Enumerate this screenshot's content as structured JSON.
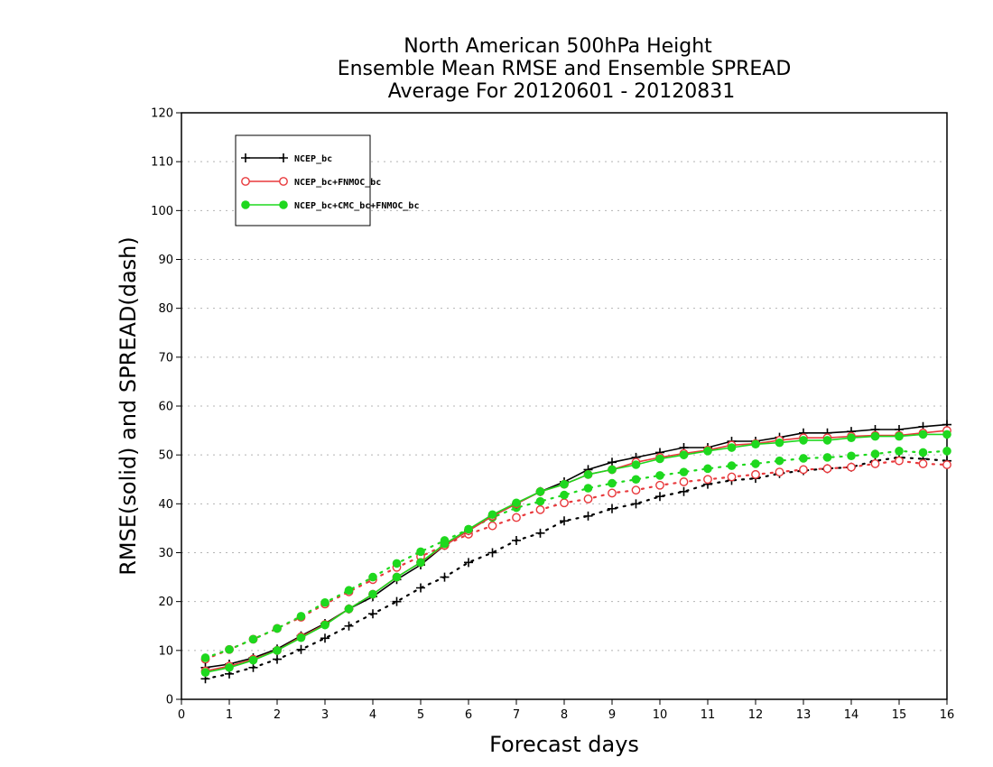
{
  "chart_data": {
    "type": "line",
    "title": [
      "North American 500hPa Height",
      "Ensemble Mean RMSE and Ensemble SPREAD",
      "Average For 20120601 - 20120831"
    ],
    "xlabel": "Forecast days",
    "ylabel": "RMSE(solid) and SPREAD(dash)",
    "xlim": [
      0,
      16
    ],
    "ylim": [
      0,
      120
    ],
    "xticks": [
      0,
      1,
      2,
      3,
      4,
      5,
      6,
      7,
      8,
      9,
      10,
      11,
      12,
      13,
      14,
      15,
      16
    ],
    "yticks": [
      0,
      10,
      20,
      30,
      40,
      50,
      60,
      70,
      80,
      90,
      100,
      110,
      120
    ],
    "grid": "horizontal dotted",
    "legend_position": "top-left",
    "x": [
      0.5,
      1,
      1.5,
      2,
      2.5,
      3,
      3.5,
      4,
      4.5,
      5,
      5.5,
      6,
      6.5,
      7,
      7.5,
      8,
      8.5,
      9,
      9.5,
      10,
      10.5,
      11,
      11.5,
      12,
      12.5,
      13,
      13.5,
      14,
      14.5,
      15,
      15.5,
      16
    ],
    "series": [
      {
        "name": "NCEP_bc",
        "color": "#000000",
        "marker": "plus",
        "rmse": [
          6.5,
          7.2,
          8.5,
          10.3,
          13,
          15.5,
          18.5,
          21,
          24.5,
          27.5,
          31.5,
          34.5,
          37.5,
          40,
          42.5,
          44.5,
          47,
          48.5,
          49.5,
          50.5,
          51.5,
          51.5,
          52.8,
          52.8,
          53.6,
          54.5,
          54.5,
          54.8,
          55.2,
          55.2,
          55.8,
          56.2
        ],
        "spread": [
          4.2,
          5.2,
          6.5,
          8.2,
          10.2,
          12.5,
          15,
          17.5,
          20,
          22.8,
          25,
          28,
          30,
          32.5,
          34,
          36.5,
          37.5,
          39,
          40,
          41.5,
          42.5,
          44,
          44.8,
          45.2,
          46.2,
          46.8,
          47.2,
          47.5,
          48.8,
          49.5,
          49.2,
          48.8
        ]
      },
      {
        "name": "NCEP_bc+FNMOC_bc",
        "color": "#e8393c",
        "marker": "circle",
        "rmse": [
          5.8,
          6.8,
          8.2,
          10,
          12.8,
          15.3,
          18.5,
          21.5,
          25,
          28,
          31.5,
          34.5,
          37.5,
          40,
          42.5,
          44,
          46,
          47,
          48.5,
          49.5,
          50.3,
          51,
          52,
          52.3,
          53,
          53.5,
          53.5,
          53.8,
          54,
          54,
          54.5,
          55
        ],
        "spread": [
          8.2,
          10.2,
          12.3,
          14.5,
          16.8,
          19.5,
          22,
          24.5,
          27,
          29.2,
          31.5,
          33.8,
          35.5,
          37.2,
          38.8,
          40.2,
          41,
          42.2,
          42.8,
          43.8,
          44.5,
          45,
          45.5,
          46,
          46.5,
          47,
          47.2,
          47.5,
          48.2,
          48.8,
          48.2,
          48
        ]
      },
      {
        "name": "NCEP_bc+CMC_bc+FNMOC_bc",
        "color": "#1ed81e",
        "marker": "dot",
        "rmse": [
          5.5,
          6.5,
          8,
          10,
          12.6,
          15.2,
          18.5,
          21.5,
          25,
          28,
          31.8,
          34.8,
          37.8,
          40.2,
          42.5,
          44,
          46,
          47,
          48,
          49.2,
          50,
          50.8,
          51.5,
          52.2,
          52.5,
          53,
          53,
          53.5,
          53.8,
          53.8,
          54.2,
          54.2
        ],
        "spread": [
          8.5,
          10.2,
          12.3,
          14.5,
          17,
          19.8,
          22.3,
          25,
          27.8,
          30.2,
          32.5,
          34.8,
          37.2,
          39.2,
          40.5,
          41.8,
          43.2,
          44.2,
          45,
          45.8,
          46.5,
          47.2,
          47.8,
          48.2,
          48.8,
          49.3,
          49.5,
          49.8,
          50.2,
          50.8,
          50.5,
          50.8
        ]
      }
    ]
  }
}
